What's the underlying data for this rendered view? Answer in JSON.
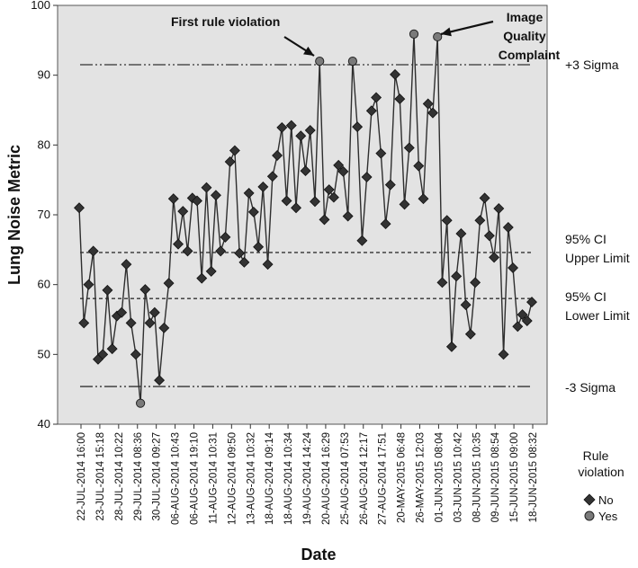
{
  "chart_data": {
    "type": "line",
    "xlabel": "Date",
    "ylabel": "Lung Noise Metric",
    "ylim": [
      40,
      100
    ],
    "yticks": [
      40,
      50,
      60,
      70,
      80,
      90,
      100
    ],
    "grid": false,
    "x_tick_labels": [
      "22-JUL-2014 16:00",
      "23-JUL-2014 15:18",
      "28-JUL-2014 10:22",
      "29-JUL-2014 08:36",
      "30-JUL-2014 09:27",
      "06-AUG-2014 10:43",
      "06-AUG-2014 19:10",
      "11-AUG-2014 10:31",
      "12-AUG-2014 09:50",
      "13-AUG-2014 10:32",
      "18-AUG-2014 09:14",
      "18-AUG-2014 10:34",
      "19-AUG-2014 14:24",
      "20-AUG-2014 16:29",
      "25-AUG-2014 07:53",
      "26-AUG-2014 12:17",
      "27-AUG-2014 17:51",
      "20-MAY-2015 06:48",
      "26-MAY-2015 12:03",
      "01-JUN-2015 08:04",
      "03-JUN-2015 10:42",
      "08-JUN-2015 10:35",
      "09-JUN-2015 08:54",
      "15-JUN-2015 09:00",
      "18-JUN-2015 08:32"
    ],
    "reference_lines": [
      {
        "label": "+3 Sigma",
        "value": 91.5,
        "style": "dash-dot-dot"
      },
      {
        "label": "95% CI Upper Limit",
        "value": 64.6,
        "style": "dashed"
      },
      {
        "label": "95% CI Lower Limit",
        "value": 58.0,
        "style": "dashed"
      },
      {
        "label": "-3 Sigma",
        "value": 45.4,
        "style": "dash-dot-dot"
      }
    ],
    "series": [
      {
        "values": [
          71.0,
          54.5,
          60.0,
          64.8,
          49.3,
          50.0,
          59.2,
          50.8,
          55.5,
          56.0,
          62.9,
          54.5,
          50.0,
          43.0,
          59.3,
          54.5,
          56.0,
          46.3,
          53.8,
          60.2,
          72.3,
          65.8,
          70.5,
          64.8,
          72.4,
          72.0,
          60.9,
          73.9,
          61.9,
          72.8,
          64.8,
          66.8,
          77.6,
          79.2,
          64.5,
          63.2,
          73.1,
          70.4,
          65.4,
          74.0,
          62.9,
          75.5,
          78.5,
          82.5,
          72.0,
          82.8,
          71.0,
          81.3,
          76.3,
          82.1,
          71.9,
          92.0,
          69.3,
          73.6,
          72.5,
          77.1,
          76.2,
          69.8,
          92.0,
          82.6,
          66.3,
          75.4,
          84.9,
          86.8,
          78.8,
          68.7,
          74.3,
          90.1,
          86.6,
          71.5,
          79.6,
          95.9,
          77.0,
          72.3,
          85.9,
          84.6,
          95.5,
          60.3,
          69.2,
          51.1,
          61.2,
          67.3,
          57.1,
          52.9,
          60.3,
          69.2,
          72.4,
          67.0,
          63.9,
          70.9,
          50.0,
          68.2,
          62.4,
          54.0,
          55.7,
          54.8,
          57.5
        ],
        "violations": [
          13,
          51,
          58,
          71,
          76
        ]
      }
    ],
    "annotations": [
      "First rule violation",
      "Image Quality Complaint"
    ],
    "legend": {
      "title": "Rule violation",
      "position": "bottom-right",
      "items": [
        {
          "label": "No",
          "marker": "diamond",
          "color": "#333333"
        },
        {
          "label": "Yes",
          "marker": "circle",
          "color": "#7a7a7a"
        }
      ]
    },
    "colors": {
      "plot_background": "#e3e3e3",
      "line": "#2e2e2e",
      "marker_no": "#333333",
      "marker_yes": "#7a7a7a"
    }
  }
}
